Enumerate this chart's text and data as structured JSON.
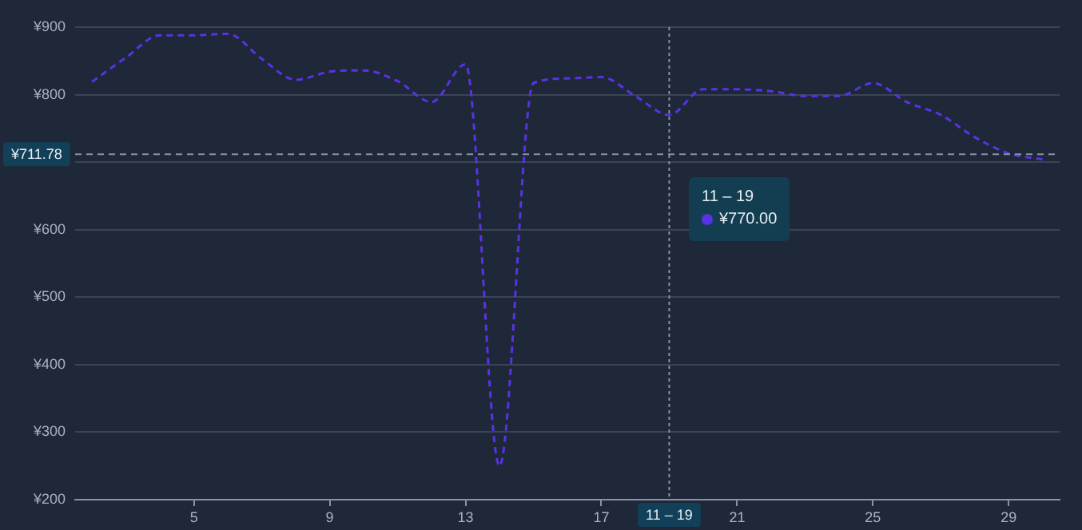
{
  "chart_data": {
    "type": "line",
    "x": [
      2,
      3,
      4,
      5,
      6,
      7,
      8,
      9,
      10,
      11,
      12,
      13,
      14,
      15,
      16,
      17,
      18,
      19,
      20,
      21,
      22,
      23,
      24,
      25,
      26,
      27,
      28,
      29,
      30
    ],
    "series": [
      {
        "color": "#5a32e6",
        "values": [
          819,
          855,
          888,
          888,
          890,
          853,
          822,
          834,
          836,
          820,
          789,
          845,
          250,
          817,
          824,
          826,
          798,
          770,
          808,
          808,
          805,
          798,
          798,
          817,
          789,
          770,
          737,
          713,
          704
        ]
      }
    ],
    "xlim": [
      1.5,
      30.5
    ],
    "xticks": [
      5,
      9,
      13,
      17,
      21,
      25,
      29
    ],
    "ylim": [
      200,
      900
    ],
    "yticks": [
      {
        "value": 200,
        "label": "¥200"
      },
      {
        "value": 300,
        "label": "¥300"
      },
      {
        "value": 400,
        "label": "¥400"
      },
      {
        "value": 500,
        "label": "¥500"
      },
      {
        "value": 600,
        "label": "¥600"
      },
      {
        "value": 700,
        "label": null
      },
      {
        "value": 800,
        "label": "¥800"
      },
      {
        "value": 900,
        "label": "¥900"
      }
    ],
    "ref_lines": [
      {
        "axis": "y",
        "value": 711.78,
        "label": "¥711.78",
        "line_style": "dashed"
      },
      {
        "axis": "x",
        "value": 19,
        "label": "11 – 19",
        "line_style": "dotted"
      }
    ],
    "annotations": [
      "11 – 19",
      "¥770.00"
    ],
    "grid": "y",
    "legend": false,
    "marker": "none",
    "line_style": "dashed"
  }
}
